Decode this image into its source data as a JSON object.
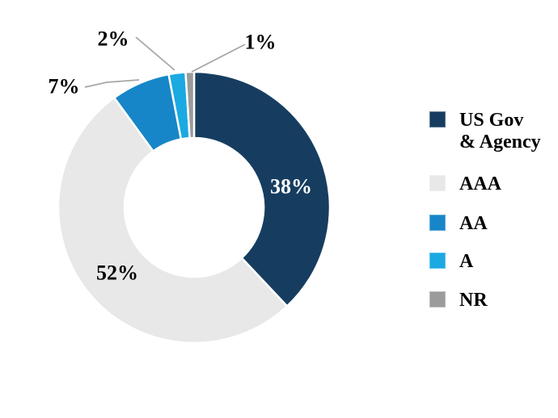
{
  "chart_data": {
    "type": "pie",
    "subtype": "donut",
    "title": "",
    "unit": "%",
    "legend_position": "right",
    "background": "#FFFFFF",
    "leader_line_color": "#A6A6A6",
    "slice_border_color": "#FFFFFF",
    "categories": [
      "US Gov & Agency",
      "AAA",
      "AA",
      "A",
      "NR"
    ],
    "values": [
      38,
      52,
      7,
      2,
      1
    ],
    "series": [
      {
        "name": "US Gov & Agency",
        "value": 38,
        "color": "#163D60",
        "label": "38%",
        "label_placement": "inside",
        "label_color": "#FFFFFF"
      },
      {
        "name": "AAA",
        "value": 52,
        "color": "#E8E8E8",
        "label": "52%",
        "label_placement": "inside",
        "label_color": "#000000"
      },
      {
        "name": "AA",
        "value": 7,
        "color": "#1786C8",
        "label": "7%",
        "label_placement": "outside",
        "label_color": "#000000"
      },
      {
        "name": "A",
        "value": 2,
        "color": "#1BA9E2",
        "label": "2%",
        "label_placement": "outside",
        "label_color": "#000000"
      },
      {
        "name": "NR",
        "value": 1,
        "color": "#9B9B9B",
        "label": "1%",
        "label_placement": "outside",
        "label_color": "#000000"
      }
    ]
  },
  "legend": {
    "items": [
      {
        "label": "US Gov\n& Agency"
      },
      {
        "label": "AAA"
      },
      {
        "label": "AA"
      },
      {
        "label": "A"
      },
      {
        "label": "NR"
      }
    ]
  }
}
